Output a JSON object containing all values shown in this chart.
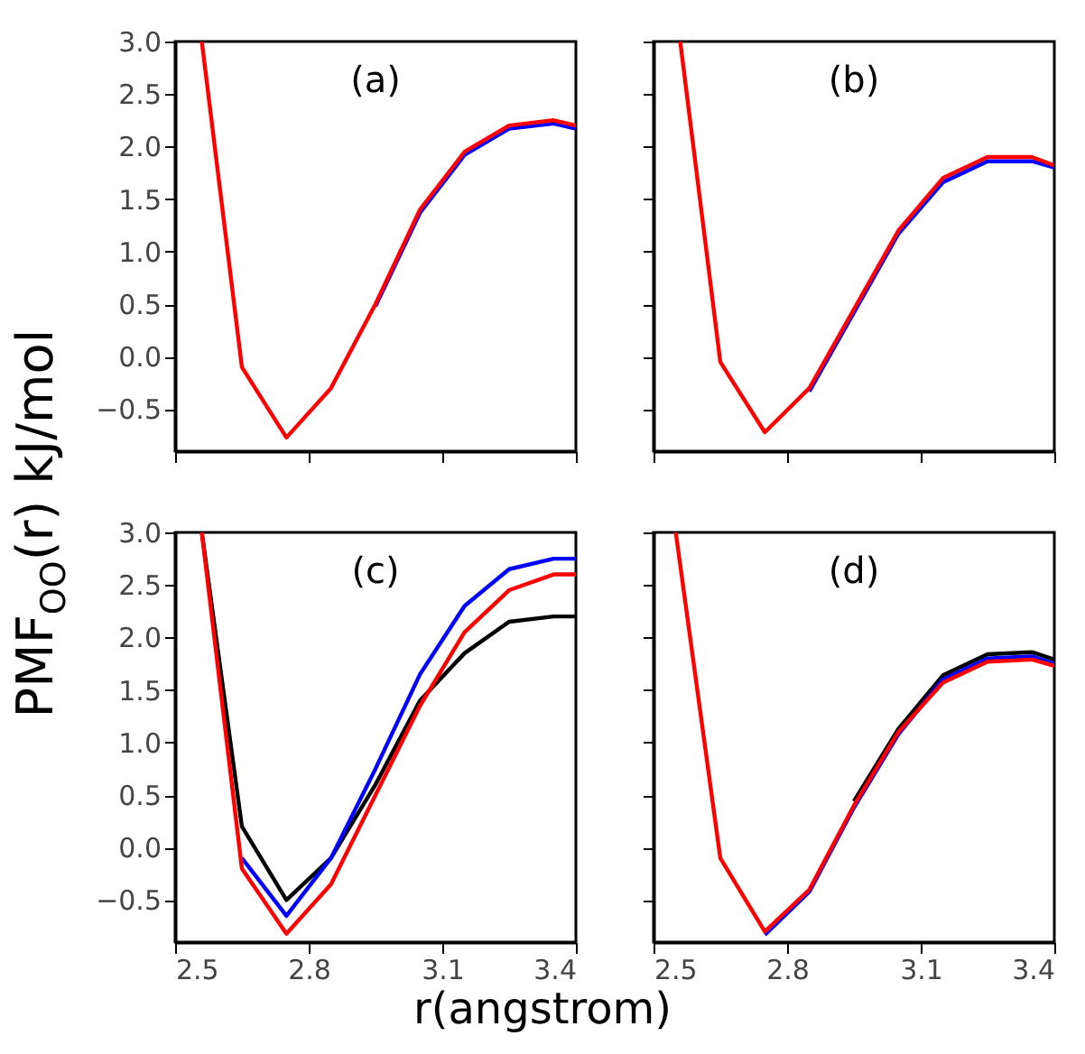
{
  "chart_data": [
    {
      "type": "line",
      "annotations": [
        "(a)"
      ],
      "x": [
        2.56,
        2.65,
        2.75,
        2.85,
        2.95,
        3.05,
        3.15,
        3.25,
        3.35,
        3.4
      ],
      "xlim": [
        2.5,
        3.4
      ],
      "xticks": [
        2.5,
        2.8,
        3.1,
        3.4
      ],
      "ylim": [
        -0.9,
        3.0
      ],
      "yticks": [
        {
          "value": -0.5,
          "label": "−0.5"
        },
        {
          "value": 0,
          "label": "0.0"
        },
        0.5,
        {
          "value": 1,
          "label": "1.0"
        },
        1.5,
        {
          "value": 2,
          "label": "2.0"
        },
        2.5,
        {
          "value": 3,
          "label": "3.0"
        }
      ],
      "tick_labels": "y",
      "grid": false,
      "series": [
        {
          "color": "#0000ff",
          "values": [
            null,
            null,
            null,
            null,
            0.48,
            1.37,
            1.92,
            2.17,
            2.22,
            2.17
          ]
        },
        {
          "color": "#ff0000",
          "values": [
            3.0,
            -0.1,
            -0.77,
            -0.3,
            0.5,
            1.4,
            1.95,
            2.2,
            2.25,
            2.2
          ]
        }
      ]
    },
    {
      "type": "line",
      "annotations": [
        "(b)"
      ],
      "x": [
        2.56,
        2.65,
        2.75,
        2.85,
        2.95,
        3.05,
        3.15,
        3.25,
        3.35,
        3.4
      ],
      "xlim": [
        2.5,
        3.4
      ],
      "xticks": [
        2.5,
        2.8,
        3.1,
        3.4
      ],
      "ylim": [
        -0.9,
        3.0
      ],
      "yticks": [
        -0.5,
        0,
        0.5,
        1,
        1.5,
        2,
        2.5,
        3
      ],
      "tick_labels": false,
      "grid": false,
      "series": [
        {
          "color": "#0000ff",
          "values": [
            null,
            null,
            null,
            -0.33,
            0.42,
            1.17,
            1.66,
            1.86,
            1.86,
            1.8
          ]
        },
        {
          "color": "#ff0000",
          "values": [
            3.0,
            -0.05,
            -0.72,
            -0.3,
            0.45,
            1.2,
            1.7,
            1.9,
            1.9,
            1.82
          ]
        }
      ]
    },
    {
      "type": "line",
      "annotations": [
        "(c)"
      ],
      "xlabel": "r(angstrom)",
      "ylabel": "PMF$_{OO}$(r) kJ/mol",
      "x": [
        2.56,
        2.65,
        2.75,
        2.85,
        2.95,
        3.05,
        3.15,
        3.25,
        3.35,
        3.4
      ],
      "xlim": [
        2.5,
        3.4
      ],
      "xticks": [
        2.5,
        2.8,
        3.1,
        3.4
      ],
      "ylim": [
        -0.9,
        3.0
      ],
      "yticks": [
        {
          "value": -0.5,
          "label": "−0.5"
        },
        {
          "value": 0,
          "label": "0.0"
        },
        0.5,
        {
          "value": 1,
          "label": "1.0"
        },
        1.5,
        {
          "value": 2,
          "label": "2.0"
        },
        2.5,
        {
          "value": 3,
          "label": "3.0"
        }
      ],
      "grid": false,
      "series": [
        {
          "color": "#000000",
          "values": [
            3.0,
            0.2,
            -0.5,
            -0.1,
            0.6,
            1.4,
            1.85,
            2.15,
            2.2,
            2.2
          ]
        },
        {
          "color": "#0000ff",
          "values": [
            null,
            -0.1,
            -0.65,
            -0.1,
            0.75,
            1.65,
            2.3,
            2.65,
            2.75,
            2.75
          ]
        },
        {
          "color": "#ff0000",
          "values": [
            3.0,
            -0.2,
            -0.82,
            -0.35,
            0.5,
            1.35,
            2.05,
            2.45,
            2.6,
            2.6
          ]
        }
      ]
    },
    {
      "type": "line",
      "annotations": [
        "(d)"
      ],
      "x": [
        2.55,
        2.65,
        2.75,
        2.85,
        2.95,
        3.05,
        3.15,
        3.25,
        3.35,
        3.4
      ],
      "xlim": [
        2.5,
        3.4
      ],
      "xticks": [
        2.5,
        2.8,
        3.1,
        3.4
      ],
      "ylim": [
        -0.9,
        3.0
      ],
      "yticks": [
        -0.5,
        0,
        0.5,
        1,
        1.5,
        2,
        2.5,
        3
      ],
      "tick_labels": "x",
      "grid": false,
      "series": [
        {
          "color": "#000000",
          "values": [
            null,
            null,
            null,
            null,
            0.44,
            1.13,
            1.64,
            1.84,
            1.86,
            1.79
          ]
        },
        {
          "color": "#0000ff",
          "values": [
            null,
            null,
            -0.83,
            -0.42,
            0.38,
            1.08,
            1.6,
            1.8,
            1.82,
            1.75
          ]
        },
        {
          "color": "#ff0000",
          "values": [
            3.0,
            -0.1,
            -0.8,
            -0.4,
            0.4,
            1.1,
            1.57,
            1.77,
            1.79,
            1.73
          ]
        }
      ]
    }
  ]
}
